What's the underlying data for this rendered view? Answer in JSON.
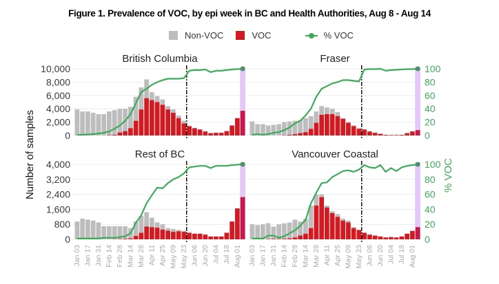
{
  "title": "Figure 1. Prevalence of VOC, by epi week in BC and Health Authorities, Aug 8 - Aug 14",
  "legend": {
    "non_voc": "Non-VOC",
    "voc": "VOC",
    "pct_voc": "% VOC"
  },
  "colors": {
    "non_voc": "#bdbdbd",
    "voc": "#d11a22",
    "pct_voc": "#3daa5a",
    "highlight": "#e4c8f7",
    "highlight_bar": "#c8194a"
  },
  "chart_data": {
    "type": "bar",
    "title": "Figure 1. Prevalence of VOC, by epi week in BC and Health Authorities, Aug 8 - Aug 14",
    "ylabel": "Number of samples",
    "y2label": "% VOC",
    "y2lim": [
      0,
      100
    ],
    "y2ticks": [
      0,
      20,
      40,
      60,
      80,
      100
    ],
    "weeks": [
      "Jan 03",
      "Jan 10",
      "Jan 17",
      "Jan 24",
      "Jan 31",
      "Feb 07",
      "Feb 14",
      "Feb 21",
      "Feb 28",
      "Mar 07",
      "Mar 14",
      "Mar 21",
      "Mar 28",
      "Apr 04",
      "Apr 11",
      "Apr 18",
      "Apr 25",
      "May 02",
      "May 09",
      "May 16",
      "May 23",
      "May 30",
      "Jun 06",
      "Jun 13",
      "Jun 20",
      "Jun 27",
      "Jul 04",
      "Jul 11",
      "Jul 18",
      "Jul 25",
      "Aug 01",
      "Aug 08"
    ],
    "xtick_labels": [
      "Jan 03",
      "Jan 17",
      "Jan 31",
      "Feb 14",
      "Feb 28",
      "Mar 14",
      "Mar 28",
      "Apr 11",
      "Apr 25",
      "May 09",
      "May 23",
      "Jun 06",
      "Jun 20",
      "Jul 04",
      "Jul 18",
      "Aug 01"
    ],
    "vline_after_week": "May 23",
    "highlight_week": "Aug 08",
    "panels": [
      {
        "name": "British Columbia",
        "ylim": [
          0,
          10000
        ],
        "yticks": [
          "0",
          "2,000",
          "4,000",
          "6,000",
          "8,000",
          "10,000"
        ],
        "ytick_values": [
          0,
          2000,
          4000,
          6000,
          8000,
          10000
        ],
        "total": [
          3900,
          3600,
          3600,
          3400,
          3200,
          3200,
          3600,
          3800,
          4000,
          4000,
          4300,
          5800,
          7200,
          8400,
          6500,
          5900,
          5400,
          4400,
          3900,
          3000,
          2200,
          1400,
          1100,
          900,
          600,
          350,
          400,
          400,
          650,
          1500,
          2600,
          3700
        ],
        "voc": [
          0,
          0,
          0,
          0,
          0,
          0,
          50,
          100,
          450,
          650,
          1100,
          2200,
          3900,
          5600,
          5300,
          5000,
          4600,
          3900,
          3400,
          2600,
          1800,
          1400,
          1100,
          900,
          600,
          350,
          400,
          400,
          650,
          1500,
          2600,
          3700
        ],
        "pct": [
          1,
          1,
          1.5,
          2,
          3,
          4,
          6,
          10,
          15,
          22,
          32,
          48,
          65,
          70,
          76,
          80,
          83,
          85,
          85,
          85,
          86,
          97,
          98,
          98,
          99,
          95,
          97,
          97,
          98,
          99,
          99.5,
          100
        ]
      },
      {
        "name": "Fraser",
        "ylim": [
          0,
          10000
        ],
        "yticks": [
          "0",
          "2,000",
          "4,000",
          "6,000",
          "8,000",
          "10,000"
        ],
        "ytick_values": [
          0,
          2000,
          4000,
          6000,
          8000,
          10000
        ],
        "total": [
          2100,
          1700,
          1700,
          1500,
          1600,
          1700,
          2000,
          2100,
          2200,
          2300,
          2600,
          2900,
          3600,
          4400,
          4200,
          4000,
          3500,
          2600,
          2000,
          1500,
          1100,
          900,
          600,
          400,
          250,
          100,
          80,
          80,
          100,
          350,
          600,
          800
        ],
        "voc": [
          0,
          0,
          0,
          0,
          0,
          0,
          40,
          100,
          200,
          350,
          500,
          1000,
          1900,
          3100,
          3200,
          3200,
          2900,
          2500,
          1900,
          1400,
          1000,
          900,
          600,
          400,
          250,
          100,
          80,
          80,
          100,
          350,
          600,
          800
        ],
        "pct": [
          1,
          2,
          1,
          2,
          4,
          5,
          8,
          12,
          18,
          22,
          30,
          40,
          58,
          70,
          74,
          78,
          80,
          83,
          83,
          82,
          81,
          99,
          99.5,
          99.5,
          100,
          97,
          98,
          98.5,
          99,
          99.5,
          99.5,
          100
        ]
      },
      {
        "name": "Rest of BC",
        "ylim": [
          0,
          4000
        ],
        "yticks": [
          "0",
          "800",
          "1,600",
          "2,400",
          "3,200",
          "4,000"
        ],
        "ytick_values": [
          0,
          800,
          1600,
          2400,
          3200,
          4000
        ],
        "total": [
          950,
          1100,
          1050,
          1000,
          900,
          700,
          700,
          700,
          700,
          700,
          600,
          950,
          1250,
          1450,
          1150,
          900,
          800,
          600,
          550,
          500,
          450,
          400,
          300,
          300,
          250,
          150,
          150,
          150,
          350,
          950,
          1650,
          2250
        ],
        "voc": [
          0,
          0,
          0,
          0,
          0,
          0,
          0,
          10,
          20,
          30,
          50,
          180,
          350,
          680,
          650,
          620,
          520,
          460,
          400,
          430,
          400,
          330,
          300,
          300,
          250,
          150,
          150,
          150,
          350,
          950,
          1650,
          2250
        ],
        "pct": [
          1,
          1,
          1,
          1,
          1,
          2,
          2,
          2,
          3,
          4,
          8,
          22,
          32,
          48,
          59,
          69,
          68,
          75,
          80,
          83,
          88,
          96,
          97,
          98,
          98,
          95,
          98,
          98,
          98,
          99,
          99.5,
          100
        ]
      },
      {
        "name": "Vancouver Coastal",
        "ylim": [
          0,
          4000
        ],
        "yticks": [
          "0",
          "800",
          "1,600",
          "2,400",
          "3,200",
          "4,000"
        ],
        "ytick_values": [
          0,
          800,
          1600,
          2400,
          3200,
          4000
        ],
        "total": [
          800,
          760,
          800,
          860,
          680,
          800,
          850,
          900,
          1050,
          950,
          1100,
          1800,
          2400,
          2400,
          1800,
          1500,
          1350,
          1100,
          1000,
          650,
          500,
          350,
          250,
          200,
          150,
          100,
          120,
          100,
          150,
          300,
          450,
          650
        ],
        "voc": [
          0,
          0,
          0,
          20,
          30,
          20,
          30,
          50,
          100,
          200,
          300,
          600,
          1800,
          2250,
          1700,
          1400,
          1200,
          1000,
          900,
          600,
          500,
          350,
          250,
          200,
          150,
          100,
          120,
          100,
          150,
          300,
          450,
          650
        ],
        "pct": [
          1,
          1,
          1,
          5,
          5,
          2,
          4,
          8,
          12,
          18,
          26,
          48,
          62,
          75,
          76,
          83,
          87,
          91,
          92,
          90,
          93,
          99,
          96,
          95,
          99,
          90,
          95,
          91,
          96,
          98,
          99,
          100
        ]
      }
    ]
  }
}
